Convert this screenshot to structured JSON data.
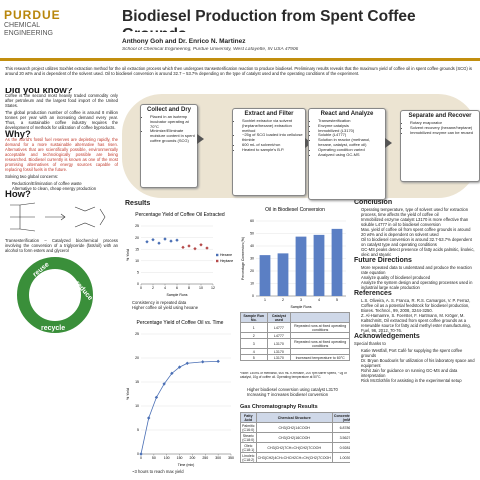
{
  "header": {
    "logo_top": "PURDUE",
    "logo_bottom": "CHEMICAL ENGINEERING",
    "title": "Biodiesel Production from Spent Coffee Grounds",
    "authors": "Anthony Goh and Dr. Enrico N. Martinez",
    "affiliation": "School of Chemical Engineering, Purdue University, West Lafayette, IN USA 47906"
  },
  "abstract": "This research project utilizes Soxhlet extraction method for the oil extraction process which then undergoes transesterification reaction to produce biodiesel. Preliminary results reveals that the maximum yield of coffee oil in spent coffee grounds (SCG) is around 20 wt% and is dependent of the solvent used. Oil to biodiesel conversion is around 32.7 – 53.7% depending on the type of catalyst used and the operating conditions of the experiment.",
  "left": {
    "did_heading": "Did you know?",
    "did_p1": "Coffee is the second most heavily traded commodity only after petroleum and the largest food import of the United States.",
    "did_p2": "The global production number of coffee is around 8 million tonnes per year with an increasing demand every year. Thus, a sustainable coffee industry requires the development of methods for utilization of coffee byproducts.",
    "why_heading": "Why?",
    "why_p1": "As the world's fossil fuel reserves are depleting rapidly, the demand for a more sustainable alternative has risen. Alternatives that are scientifically possible, environmentally acceptable and technologically possible are being researched. Biodiesel currently is known as one of the most promising alternatives of energy sources capable of replacing fossil fuels in the future.",
    "why_p2": "Solving two global concerns:",
    "why_list": [
      "Reduction/Elimination of coffee waste",
      "Alternative to clean, cheap energy production"
    ],
    "how_heading": "How?",
    "how_p": "Transesterification – Catalyzed biochemical process involving the conversion of a triglyceride (fats/oil) with an alcohol to form esters and glycerol",
    "cycle": [
      "reuse",
      "reduce",
      "recycle"
    ]
  },
  "process": [
    {
      "title": "Collect and Dry",
      "items": [
        "Placed in an isotemp incubator operating at 70°C",
        "Minimize/Eliminate moisture content in spent coffee grounds (SCG)"
      ]
    },
    {
      "title": "Extract and Filter",
      "items": [
        "Soxhlet extractor via solvent (heptane/hexane) extraction method",
        "~25g of SCG loaded into cellulose thimble",
        "600 mL of solvent/run",
        "Heated to sample's B.P."
      ]
    },
    {
      "title": "React and Analyze",
      "items": [
        "Transesterification",
        "Enzyme catalysis",
        "Immobilized (L3170)",
        "Soluble (L4777)",
        "Solution in reactor (methanol, hexane, catalyst, coffee oil)",
        "Operating condition varied",
        "Analyzed using GC-MS"
      ]
    },
    {
      "title": "Separate and Recover",
      "items": [
        "Rotary evaporator",
        "Solvent recovery (hexane/heptane)",
        "Immobilized enzyme can be reused"
      ]
    }
  ],
  "results": {
    "heading": "Results",
    "bullets1": [
      "Consistency in repeated data",
      "Higher coffee oil yield using hexane"
    ],
    "bullets2": [
      "~3 hours to reach max yield"
    ],
    "bullets3": [
      "Higher biodiesel conversion using catalyst L3170",
      "Increasing T increases biodiesel conversion"
    ],
    "note": "*Note: 140mL of methanol, 600 mL n-Hexane, 200 rpm stirrer speed, ~2g of catalyst, 10g of coffee oil. Operating temperature at 50°C."
  },
  "charts": [
    {
      "type": "scatter",
      "title": "Percentage Yield of Coffee Oil Extracted",
      "x_label": "Sample Runs",
      "y_label": "% Yield",
      "xlim": [
        0,
        12
      ],
      "xticks": [
        0,
        2,
        4,
        6,
        8,
        10,
        12
      ],
      "ylim": [
        0,
        25
      ],
      "yticks": [
        0,
        5,
        10,
        15,
        20,
        25
      ],
      "series": [
        {
          "name": "Hexane",
          "color": "#4a6fb5",
          "x": [
            1,
            2,
            3,
            4,
            5,
            6
          ],
          "values": [
            18.2,
            19.1,
            17.6,
            19.4,
            18.5,
            18.9
          ]
        },
        {
          "name": "Heptane",
          "color": "#b54a4a",
          "x": [
            7,
            8,
            9,
            10,
            11
          ],
          "values": [
            15.8,
            16.4,
            15.2,
            16.9,
            15.5
          ]
        }
      ]
    },
    {
      "type": "line",
      "title": "Percentage Yield of Coffee Oil vs. Time",
      "x_label": "Time (min)",
      "y_label": "% Yield",
      "xlim": [
        0,
        350
      ],
      "xticks": [
        0,
        50,
        100,
        150,
        200,
        250,
        300,
        350
      ],
      "ylim": [
        0,
        25
      ],
      "yticks": [
        0,
        5,
        10,
        15,
        20,
        25
      ],
      "series": [
        {
          "name": "Hexane",
          "color": "#4a6fb5",
          "x": [
            0,
            30,
            60,
            90,
            120,
            150,
            180,
            240,
            300
          ],
          "values": [
            0,
            7.5,
            11.8,
            14.6,
            16.8,
            18.1,
            18.9,
            19.2,
            19.3
          ]
        }
      ]
    },
    {
      "type": "bar",
      "title": "Oil in Biodiesel Conversion",
      "x_label": "Sample Runs",
      "y_label": "Percentage Conversion (%)",
      "categories": [
        "1",
        "2",
        "3",
        "4",
        "5"
      ],
      "values": [
        32.7,
        34.1,
        47.5,
        48.9,
        53.7
      ],
      "color": "#5b7fc4",
      "ylim": [
        0,
        60
      ],
      "yticks": [
        0,
        10,
        20,
        30,
        40,
        50,
        60
      ]
    }
  ],
  "run_table": {
    "header": [
      "Sample Run No.",
      "Catalyst used",
      null
    ],
    "rows": [
      [
        "1",
        "L4777",
        "Repeated runs at fixed operating conditions"
      ],
      [
        "2",
        "L4777",
        null
      ],
      [
        "3",
        "L3170",
        "Repeated runs at fixed operating conditions"
      ],
      [
        "4",
        "L3170",
        null
      ],
      [
        "5",
        "L3170",
        "Increased temperature to 60°C"
      ]
    ]
  },
  "gc": {
    "heading": "Gas Chromatography Results",
    "header": [
      "Fatty Acid",
      "Chemical Structure",
      "Concentrations (mM)",
      "Weight (%)"
    ],
    "rows": [
      [
        "Palmitic (C16:0)",
        "CH3(CH2)14COOH",
        "6.878652",
        "35.866"
      ],
      [
        "Stearic (C18:0)",
        "CH3(CH2)16COOH",
        "3.562774",
        "19.130"
      ],
      [
        "Oleic (C18:1)",
        "CH3(CH2)7CH=CH(CH2)7COOH",
        "0.928191",
        "4.948"
      ],
      [
        "Linoleic (C18:2)",
        "CH3(CH2)4CH=CHCH2CH=CH(CH2)7COOH",
        "1.003957",
        "5.360"
      ]
    ]
  },
  "right": {
    "conclusion_heading": "Conclusion",
    "conclusion": [
      "Operating temperature, type of solvent used for extraction process, time affects the yield of coffee oil",
      "Immobilized enzyme catalyst L3170 is more effective than soluble L4777 in oil to biodiesel conversion",
      "Max. yield of coffee oil from spent coffee grounds is around 20 wt% and is dependent on solvent used",
      "Oil to biodiesel conversion is around 32.7-53.7% dependent on catalyst type and operating conditions",
      "GC-MS peaks detect presence of fatty acids palmitic, linoleic, oleic and stearic"
    ],
    "future_heading": "Future Directions",
    "future": [
      "More repeated data to understand and produce the reaction rate equation",
      "Analyze quality of biodiesel produced",
      "Analyze the system design and operating processes used in industrial large scale production"
    ],
    "references_heading": "References",
    "references": [
      "L.S. Oliveira, A. S. Franca, R. R.S. Camargos, V. P. Ferraz, Coffee oil as a potential feedstock for biodiesel production, Biores. Technol., 99, 2008, 3244-3250.",
      "Z. Al-Hamamre, S. Foerster, F. Hartmann, M. Kröger, M. Kaltschmitt, Oil extracted from spent coffee grounds as a renewable source for fatty acid methyl ester manufacturing, Fuel, 96, 2012, 70-76."
    ],
    "ack_heading": "Acknowledgements",
    "ack_intro": "Special thanks to",
    "ack": [
      "Katie Westfall, Port Café for supplying the spent coffee grounds",
      "Dr. Bryan Boudouris for utilization of his laboratory space and equipment",
      "Rohit Jain for guidance on running GC-MS and data interpretation",
      "Rick McGlothlin for assisting in the experimental setup"
    ]
  }
}
